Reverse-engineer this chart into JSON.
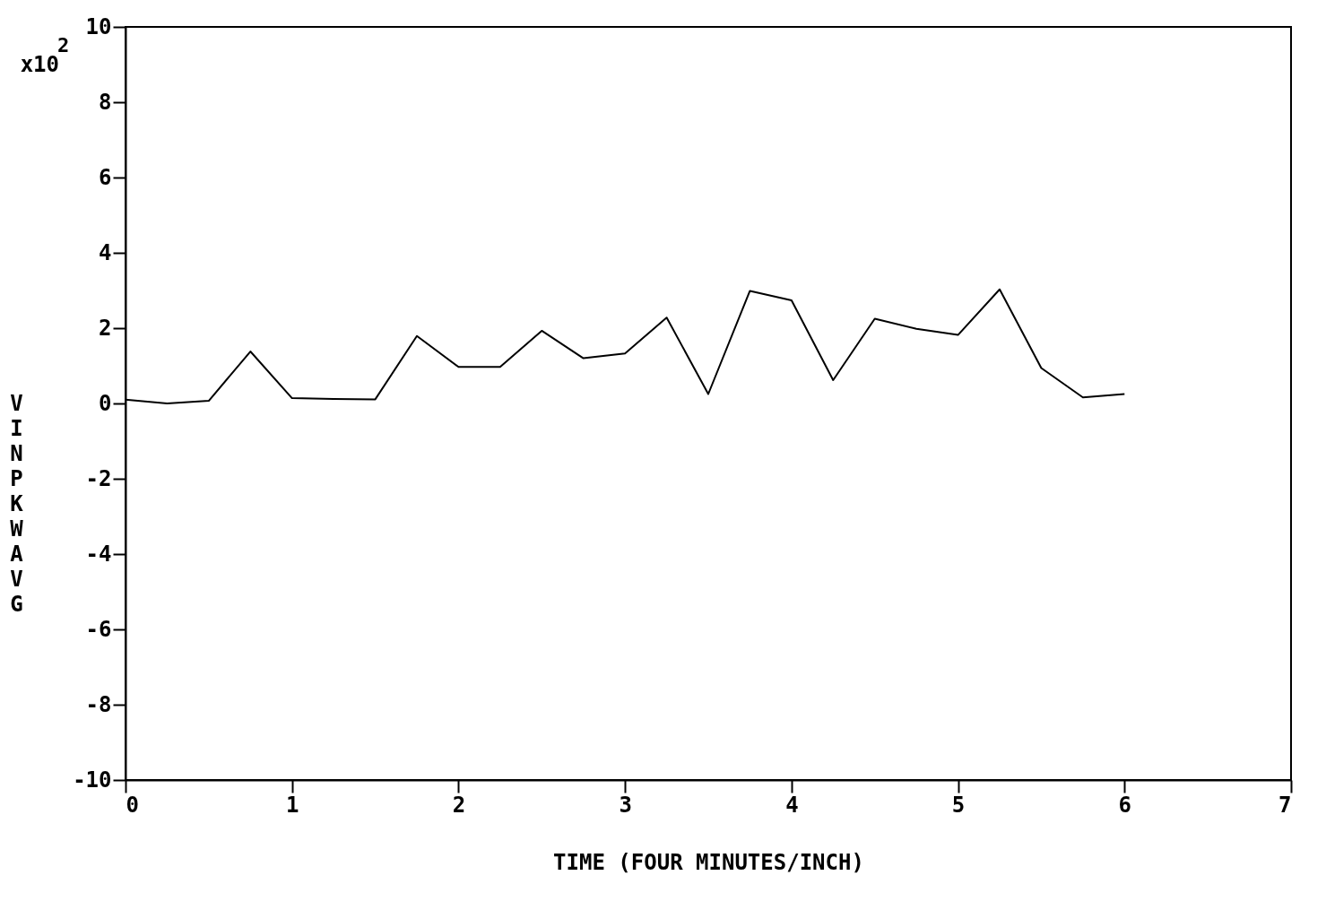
{
  "chart_data": {
    "type": "line",
    "xlabel": "TIME (FOUR MINUTES/INCH)",
    "ylabel": "VINP KW AVG",
    "annotations": [
      "x10$^{2}$"
    ],
    "x": [
      0,
      0.25,
      0.5,
      0.75,
      1,
      1.25,
      1.5,
      1.75,
      2,
      2.25,
      2.5,
      2.75,
      3,
      3.25,
      3.5,
      3.75,
      4,
      4.25,
      4.5,
      4.75,
      5,
      5.25,
      5.5,
      5.75,
      6
    ],
    "series": [
      {
        "color": "#000000",
        "values": [
          0.1,
          0.0,
          0.07,
          1.38,
          0.14,
          0.12,
          0.11,
          1.79,
          0.97,
          0.97,
          1.93,
          1.2,
          1.33,
          2.28,
          0.25,
          2.99,
          2.74,
          0.62,
          2.25,
          1.98,
          1.82,
          3.03,
          0.94,
          0.16,
          0.25
        ]
      }
    ],
    "xlim": [
      0,
      7
    ],
    "xticks": [
      0,
      1,
      2,
      3,
      4,
      5,
      6,
      7
    ],
    "ylim": [
      -10,
      10
    ],
    "yticks": [
      -10,
      -8,
      -6,
      -4,
      -2,
      0,
      2,
      4,
      6,
      8,
      10
    ],
    "grid": false,
    "marker": "none",
    "line_style": "solid"
  }
}
